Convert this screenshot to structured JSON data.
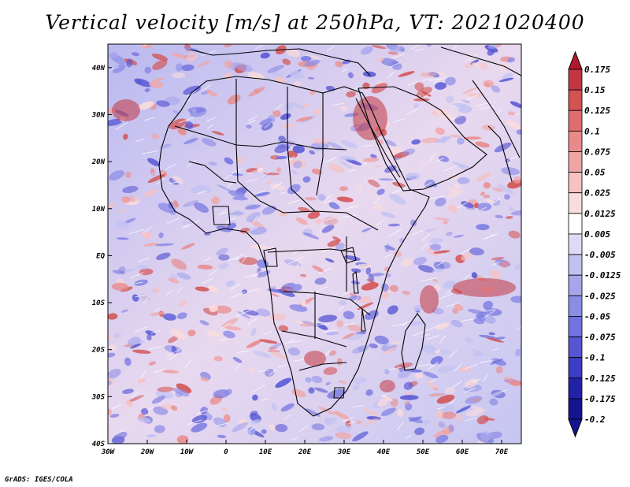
{
  "title": "Vertical velocity [m/s] at 250hPa, VT: 2021020400",
  "credit": "GrADS: IGES/COLA",
  "map": {
    "lon_range": [
      -30,
      75
    ],
    "lat_range": [
      -40,
      45
    ],
    "lon_ticks": [
      "30W",
      "20W",
      "10W",
      "0",
      "10E",
      "20E",
      "30E",
      "40E",
      "50E",
      "60E",
      "70E"
    ],
    "lat_ticks": [
      "40N",
      "30N",
      "20N",
      "10N",
      "EQ",
      "10S",
      "20S",
      "30S",
      "40S"
    ]
  },
  "colorbar": {
    "labels": [
      "0.175",
      "0.15",
      "0.125",
      "0.1",
      "0.075",
      "0.05",
      "0.025",
      "0.0125",
      "0.005",
      "-0.005",
      "-0.0125",
      "-0.025",
      "-0.05",
      "-0.075",
      "-0.1",
      "-0.125",
      "-0.175",
      "-0.2"
    ],
    "colors": [
      "#b2182b",
      "#c2373f",
      "#d35252",
      "#e06d6d",
      "#e98a8a",
      "#f0a5a5",
      "#f6c2c2",
      "#fadcdc",
      "#ffffff",
      "#dcdcf8",
      "#c2c2f2",
      "#a6a6ec",
      "#8c8ce6",
      "#7272e0",
      "#5656d4",
      "#3c3cc4",
      "#2222a8",
      "#141490"
    ]
  }
}
